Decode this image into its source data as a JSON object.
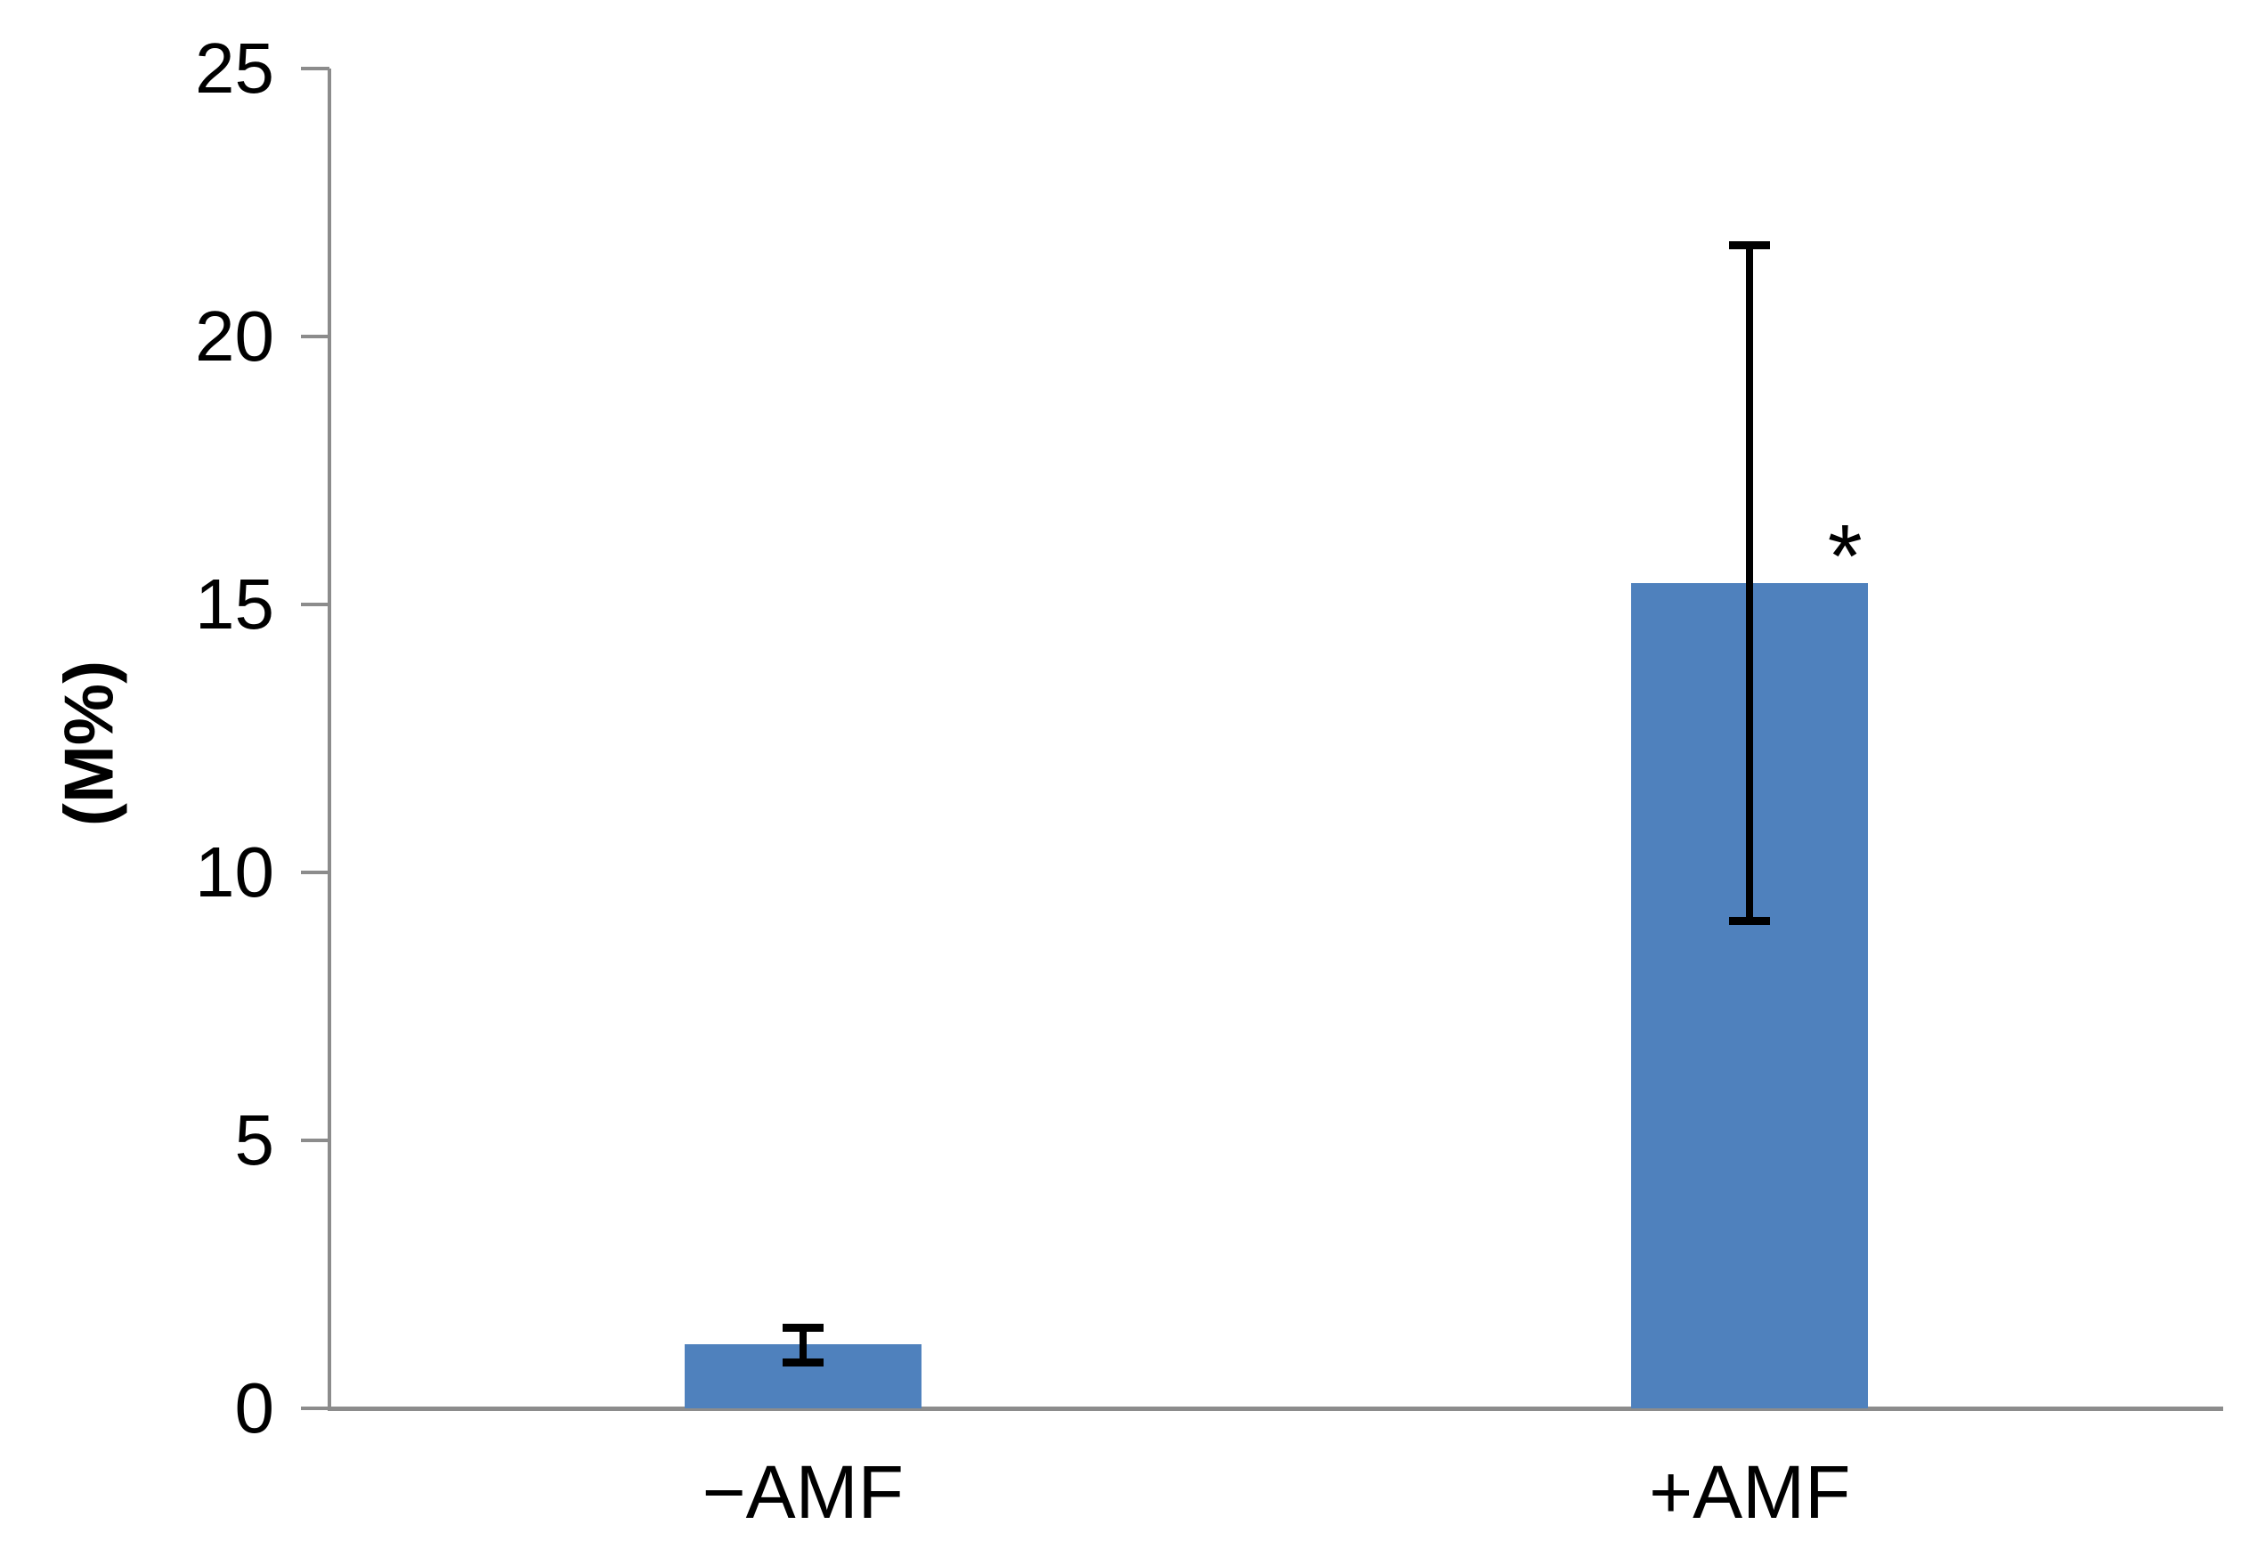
{
  "chart_data": {
    "type": "bar",
    "title": "",
    "categories": [
      "−AMF",
      "+AMF"
    ],
    "values": [
      1.2,
      15.4
    ],
    "error_bars": [
      {
        "low": 0.85,
        "high": 1.5
      },
      {
        "low": 9.1,
        "high": 21.7
      }
    ],
    "annotations": [
      {
        "category_index": 1,
        "text": "*",
        "meaning": "significance-marker"
      }
    ],
    "ylabel": "(M%)",
    "xlabel": "",
    "ylim": [
      0,
      25
    ],
    "yticks": [
      0,
      5,
      10,
      15,
      20,
      25
    ],
    "grid": false,
    "legend_position": "none",
    "bar_color": "#4F81BD",
    "axis_color": "#8C8C8C",
    "error_bar_color": "#000000",
    "text_color": "#000000"
  }
}
